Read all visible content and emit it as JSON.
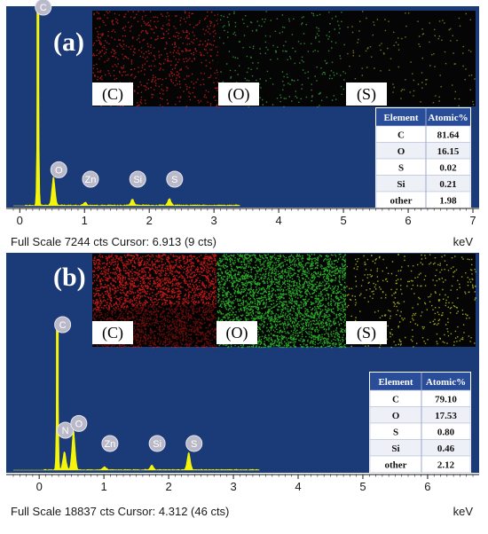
{
  "chart_data": [
    {
      "type": "line",
      "panel_label": "(a)",
      "xlabel": "keV",
      "xlim": [
        -0.1,
        7.0
      ],
      "x_ticks": [
        "0",
        "1",
        "2",
        "3",
        "4",
        "5",
        "6",
        "7"
      ],
      "status": "Full Scale 7244 cts Cursor: 6.913  (9 cts)",
      "peaks": [
        {
          "label": "C",
          "x": 0.28,
          "y": 7244
        },
        {
          "label": "O",
          "x": 0.52,
          "y": 1050
        },
        {
          "label": "Zn",
          "x": 1.01,
          "y": 120
        },
        {
          "label": "Si",
          "x": 1.74,
          "y": 240
        },
        {
          "label": "S",
          "x": 2.31,
          "y": 240
        }
      ],
      "labeled_peaks": [
        "C",
        "O",
        "Zn",
        "Si",
        "S"
      ],
      "maps": [
        {
          "label": "(C)",
          "color": "#c81d1d",
          "density": 0.1
        },
        {
          "label": "(O)",
          "color": "#3a9a3a",
          "density": 0.04
        },
        {
          "label": "(S)",
          "color": "#8a8a2a",
          "density": 0.02
        }
      ],
      "table": {
        "headers": [
          "Element",
          "Atomic%"
        ],
        "rows": [
          [
            "C",
            "81.64"
          ],
          [
            "O",
            "16.15"
          ],
          [
            "S",
            "0.02"
          ],
          [
            "Si",
            "0.21"
          ],
          [
            "other",
            "1.98"
          ]
        ]
      }
    },
    {
      "type": "line",
      "panel_label": "(b)",
      "xlabel": "keV",
      "xlim": [
        -0.4,
        6.7
      ],
      "x_ticks": [
        "0",
        "1",
        "2",
        "3",
        "4",
        "5",
        "6"
      ],
      "status": "Full Scale 18837 cts Cursor: 4.312  (46 cts)",
      "peaks": [
        {
          "label": "C",
          "x": 0.28,
          "y": 18837
        },
        {
          "label": "N",
          "x": 0.39,
          "y": 2400
        },
        {
          "label": "O",
          "x": 0.53,
          "y": 5200
        },
        {
          "label": "Zn",
          "x": 1.01,
          "y": 400
        },
        {
          "label": "Si",
          "x": 1.74,
          "y": 600
        },
        {
          "label": "S",
          "x": 2.31,
          "y": 2300
        }
      ],
      "labeled_peaks": [
        "C",
        "N",
        "O",
        "Zn",
        "Si",
        "S"
      ],
      "maps": [
        {
          "label": "(C)",
          "color": "#e01a1a",
          "density": 0.45
        },
        {
          "label": "(O)",
          "color": "#2fc42f",
          "density": 0.45
        },
        {
          "label": "(S)",
          "color": "#b8c020",
          "density": 0.06
        }
      ],
      "table": {
        "headers": [
          "Element",
          "Atomic%"
        ],
        "rows": [
          [
            "C",
            "79.10"
          ],
          [
            "O",
            "17.53"
          ],
          [
            "S",
            "0.80"
          ],
          [
            "Si",
            "0.46"
          ],
          [
            "other",
            "2.12"
          ]
        ]
      }
    }
  ],
  "colors": {
    "plot_bg": "#1b3a78",
    "spectrum": "#f5f50a",
    "status_bg": "#ffffff",
    "table_header": "#2a4d9a"
  }
}
